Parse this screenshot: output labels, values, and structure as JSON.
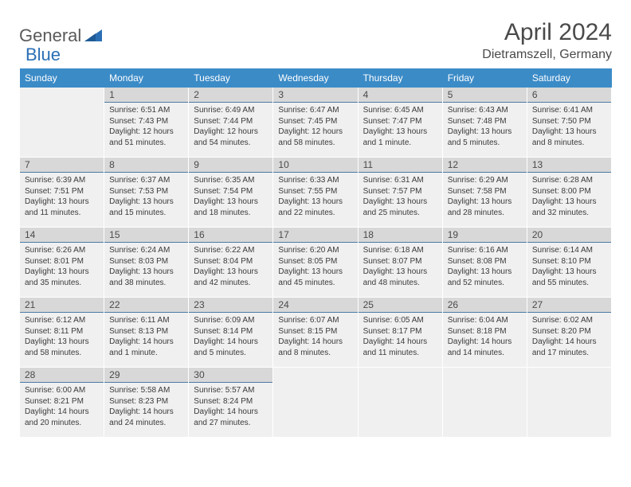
{
  "logo": {
    "text1": "General",
    "text2": "Blue",
    "text1_color": "#5a5a5a",
    "text2_color": "#2a6fb5",
    "shape_color": "#2a6fb5"
  },
  "header": {
    "title": "April 2024",
    "location": "Dietramszell, Germany",
    "title_fontsize": 30,
    "title_color": "#4a4a4a",
    "location_fontsize": 16
  },
  "calendar": {
    "header_bg": "#3b8bc7",
    "header_fg": "#ffffff",
    "cell_bg": "#f0f0f0",
    "daynum_bg": "#d8d8d8",
    "daynum_border": "#4a7aa5",
    "text_color": "#3a3a3a",
    "days_of_week": [
      "Sunday",
      "Monday",
      "Tuesday",
      "Wednesday",
      "Thursday",
      "Friday",
      "Saturday"
    ],
    "start_offset": 1,
    "num_days": 30,
    "rows": 5,
    "cols": 7,
    "cells": [
      {
        "day": 1,
        "sunrise": "6:51 AM",
        "sunset": "7:43 PM",
        "daylight": "12 hours and 51 minutes."
      },
      {
        "day": 2,
        "sunrise": "6:49 AM",
        "sunset": "7:44 PM",
        "daylight": "12 hours and 54 minutes."
      },
      {
        "day": 3,
        "sunrise": "6:47 AM",
        "sunset": "7:45 PM",
        "daylight": "12 hours and 58 minutes."
      },
      {
        "day": 4,
        "sunrise": "6:45 AM",
        "sunset": "7:47 PM",
        "daylight": "13 hours and 1 minute."
      },
      {
        "day": 5,
        "sunrise": "6:43 AM",
        "sunset": "7:48 PM",
        "daylight": "13 hours and 5 minutes."
      },
      {
        "day": 6,
        "sunrise": "6:41 AM",
        "sunset": "7:50 PM",
        "daylight": "13 hours and 8 minutes."
      },
      {
        "day": 7,
        "sunrise": "6:39 AM",
        "sunset": "7:51 PM",
        "daylight": "13 hours and 11 minutes."
      },
      {
        "day": 8,
        "sunrise": "6:37 AM",
        "sunset": "7:53 PM",
        "daylight": "13 hours and 15 minutes."
      },
      {
        "day": 9,
        "sunrise": "6:35 AM",
        "sunset": "7:54 PM",
        "daylight": "13 hours and 18 minutes."
      },
      {
        "day": 10,
        "sunrise": "6:33 AM",
        "sunset": "7:55 PM",
        "daylight": "13 hours and 22 minutes."
      },
      {
        "day": 11,
        "sunrise": "6:31 AM",
        "sunset": "7:57 PM",
        "daylight": "13 hours and 25 minutes."
      },
      {
        "day": 12,
        "sunrise": "6:29 AM",
        "sunset": "7:58 PM",
        "daylight": "13 hours and 28 minutes."
      },
      {
        "day": 13,
        "sunrise": "6:28 AM",
        "sunset": "8:00 PM",
        "daylight": "13 hours and 32 minutes."
      },
      {
        "day": 14,
        "sunrise": "6:26 AM",
        "sunset": "8:01 PM",
        "daylight": "13 hours and 35 minutes."
      },
      {
        "day": 15,
        "sunrise": "6:24 AM",
        "sunset": "8:03 PM",
        "daylight": "13 hours and 38 minutes."
      },
      {
        "day": 16,
        "sunrise": "6:22 AM",
        "sunset": "8:04 PM",
        "daylight": "13 hours and 42 minutes."
      },
      {
        "day": 17,
        "sunrise": "6:20 AM",
        "sunset": "8:05 PM",
        "daylight": "13 hours and 45 minutes."
      },
      {
        "day": 18,
        "sunrise": "6:18 AM",
        "sunset": "8:07 PM",
        "daylight": "13 hours and 48 minutes."
      },
      {
        "day": 19,
        "sunrise": "6:16 AM",
        "sunset": "8:08 PM",
        "daylight": "13 hours and 52 minutes."
      },
      {
        "day": 20,
        "sunrise": "6:14 AM",
        "sunset": "8:10 PM",
        "daylight": "13 hours and 55 minutes."
      },
      {
        "day": 21,
        "sunrise": "6:12 AM",
        "sunset": "8:11 PM",
        "daylight": "13 hours and 58 minutes."
      },
      {
        "day": 22,
        "sunrise": "6:11 AM",
        "sunset": "8:13 PM",
        "daylight": "14 hours and 1 minute."
      },
      {
        "day": 23,
        "sunrise": "6:09 AM",
        "sunset": "8:14 PM",
        "daylight": "14 hours and 5 minutes."
      },
      {
        "day": 24,
        "sunrise": "6:07 AM",
        "sunset": "8:15 PM",
        "daylight": "14 hours and 8 minutes."
      },
      {
        "day": 25,
        "sunrise": "6:05 AM",
        "sunset": "8:17 PM",
        "daylight": "14 hours and 11 minutes."
      },
      {
        "day": 26,
        "sunrise": "6:04 AM",
        "sunset": "8:18 PM",
        "daylight": "14 hours and 14 minutes."
      },
      {
        "day": 27,
        "sunrise": "6:02 AM",
        "sunset": "8:20 PM",
        "daylight": "14 hours and 17 minutes."
      },
      {
        "day": 28,
        "sunrise": "6:00 AM",
        "sunset": "8:21 PM",
        "daylight": "14 hours and 20 minutes."
      },
      {
        "day": 29,
        "sunrise": "5:58 AM",
        "sunset": "8:23 PM",
        "daylight": "14 hours and 24 minutes."
      },
      {
        "day": 30,
        "sunrise": "5:57 AM",
        "sunset": "8:24 PM",
        "daylight": "14 hours and 27 minutes."
      }
    ],
    "labels": {
      "sunrise": "Sunrise:",
      "sunset": "Sunset:",
      "daylight": "Daylight:"
    }
  }
}
